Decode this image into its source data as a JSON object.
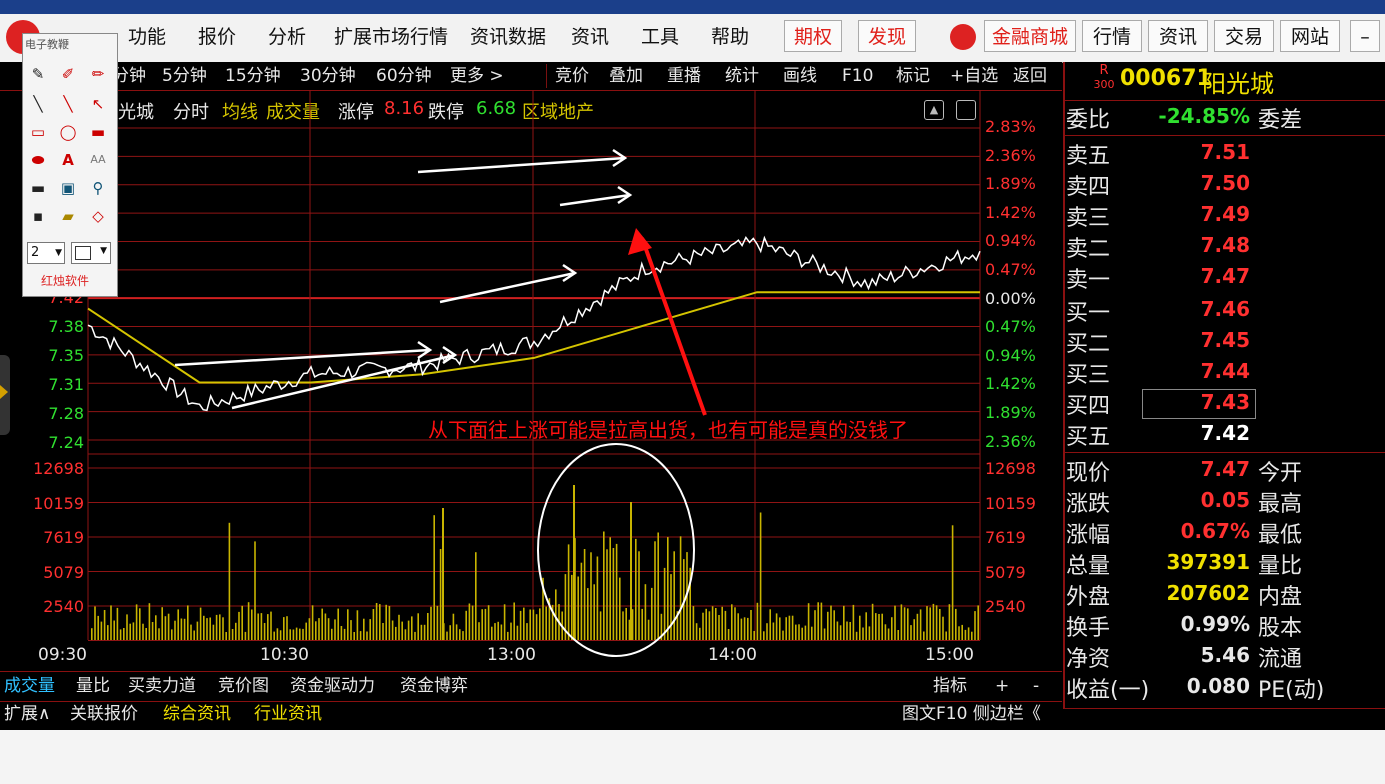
{
  "top_menu": {
    "items": [
      "功能",
      "报价",
      "分析",
      "扩展市场行情",
      "资讯数据",
      "资讯",
      "工具",
      "帮助"
    ],
    "red_items": [
      "期权",
      "发现"
    ],
    "buttons": [
      "金融商城",
      "行情",
      "资讯",
      "交易",
      "网站"
    ]
  },
  "toolbar2": {
    "periods": [
      "分钟",
      "5分钟",
      "15分钟",
      "30分钟",
      "60分钟",
      "更多 >"
    ],
    "actions": [
      "竞价",
      "叠加",
      "重播",
      "统计",
      "画线",
      "F10",
      "标记",
      "+自选",
      "返回"
    ]
  },
  "chart_header": {
    "name": "光城",
    "mode": "分时",
    "avg": "均线",
    "vol": "成交量",
    "limit_up_label": "涨停",
    "limit_up": "8.16",
    "limit_down_label": "跌停",
    "limit_down": "6.68",
    "sector": "区域地产"
  },
  "price_axis_left": [
    "7.42",
    "7.38",
    "7.35",
    "7.31",
    "7.28",
    "7.24"
  ],
  "price_axis_right": [
    "2.83%",
    "2.36%",
    "1.89%",
    "1.42%",
    "0.94%",
    "0.47%",
    "0.00%",
    "0.47%",
    "0.94%",
    "1.42%",
    "1.89%",
    "2.36%"
  ],
  "vol_axis": [
    "12698",
    "10159",
    "7619",
    "5079",
    "2540"
  ],
  "time_axis": [
    "09:30",
    "10:30",
    "13:00",
    "14:00",
    "15:00"
  ],
  "annotation_text": "从下面往上涨可能是拉高出货，也有可能是真的没钱了",
  "colors": {
    "price_line": "#ffffff",
    "avg_line": "#d4c400",
    "volume": "#c8b400",
    "grid": "#b01818",
    "up": "#ff3030",
    "down": "#30e030",
    "annotation": "#ff1010"
  },
  "chart_data": {
    "type": "line",
    "x": [
      "09:30",
      "10:00",
      "10:30",
      "11:00",
      "11:30/13:00",
      "13:30",
      "14:00",
      "14:30",
      "15:00"
    ],
    "series": [
      {
        "name": "价格",
        "values": [
          7.38,
          7.28,
          7.32,
          7.33,
          7.36,
          7.45,
          7.48,
          7.43,
          7.47
        ]
      },
      {
        "name": "均线",
        "values": [
          7.4,
          7.31,
          7.31,
          7.32,
          7.34,
          7.38,
          7.42,
          7.42,
          7.42
        ]
      }
    ],
    "volume_max": 12698,
    "ylim": [
      7.24,
      7.62
    ]
  },
  "stock": {
    "code": "000671",
    "name": "阳光城",
    "badge_top": "R",
    "badge_bottom": "300",
    "webi_label": "委比",
    "webi": "-24.85%",
    "weicha_label": "委差",
    "sell": [
      {
        "label": "卖五",
        "price": "7.51"
      },
      {
        "label": "卖四",
        "price": "7.50"
      },
      {
        "label": "卖三",
        "price": "7.49"
      },
      {
        "label": "卖二",
        "price": "7.48"
      },
      {
        "label": "卖一",
        "price": "7.47"
      }
    ],
    "buy": [
      {
        "label": "买一",
        "price": "7.46"
      },
      {
        "label": "买二",
        "price": "7.45"
      },
      {
        "label": "买三",
        "price": "7.44"
      },
      {
        "label": "买四",
        "price": "7.43"
      },
      {
        "label": "买五",
        "price": "7.42"
      }
    ],
    "stats": [
      {
        "label": "现价",
        "value": "7.47",
        "label2": "今开"
      },
      {
        "label": "涨跌",
        "value": "0.05",
        "label2": "最高"
      },
      {
        "label": "涨幅",
        "value": "0.67%",
        "label2": "最低"
      },
      {
        "label": "总量",
        "value": "397391",
        "label2": "量比"
      },
      {
        "label": "外盘",
        "value": "207602",
        "label2": "内盘"
      },
      {
        "label": "换手",
        "value": "0.99%",
        "label2": "股本"
      },
      {
        "label": "净资",
        "value": "5.46",
        "label2": "流通"
      },
      {
        "label": "收益(一)",
        "value": "0.080",
        "label2": "PE(动)"
      }
    ]
  },
  "bottom_tabs": [
    "成交量",
    "量比",
    "买卖力道",
    "竞价图",
    "资金驱动力",
    "资金博弈"
  ],
  "bottom_right": [
    "指标",
    "+",
    "-"
  ],
  "bottom_tabs2": [
    "扩展∧",
    "关联报价",
    "综合资讯",
    "行业资讯"
  ],
  "bottom_right2": "图文F10 侧边栏《",
  "toolbox": {
    "title": "电子教鞭",
    "brand": "红烛软件",
    "width_value": "2"
  }
}
